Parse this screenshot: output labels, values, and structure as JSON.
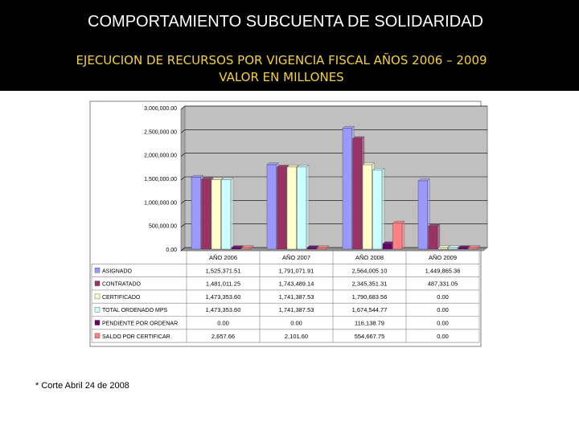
{
  "header": {
    "title": "COMPORTAMIENTO SUBCUENTA DE SOLIDARIDAD",
    "subtitle_line1": "EJECUCION DE RECURSOS POR VIGENCIA FISCAL AÑOS 2006 – 2009",
    "subtitle_line2": "VALOR EN MILLONES"
  },
  "footnote": "* Corte Abril 24 de 2008",
  "chart_data": {
    "type": "bar",
    "categories": [
      "AÑO 2006",
      "AÑO 2007",
      "AÑO 2008",
      "AÑO 2009"
    ],
    "y_ticks": [
      "0.00",
      "500,000.00",
      "1,000,000.00",
      "1,500,000.00",
      "2,000,000.00",
      "2,500,000.00",
      "3,000,000.00"
    ],
    "ylim": [
      0,
      3000000
    ],
    "grid": true,
    "series": [
      {
        "name": "ASIGNADO",
        "color": "#9999FF",
        "values": [
          1525371.51,
          1791071.91,
          2564005.1,
          1449865.36
        ],
        "labels": [
          "1,525,371.51",
          "1,791,071.91",
          "2,564,005.10",
          "1,449,865.36"
        ]
      },
      {
        "name": "CONTRATADO",
        "color": "#993366",
        "values": [
          1481011.25,
          1743489.14,
          2345351.31,
          487331.05
        ],
        "labels": [
          "1,481,011.25",
          "1,743,489.14",
          "2,345,351.31",
          "487,331.05"
        ]
      },
      {
        "name": "CERTIFICADO",
        "color": "#FFFFCC",
        "values": [
          1473353.6,
          1741387.53,
          1790683.56,
          0
        ],
        "labels": [
          "1,473,353.60",
          "1,741,387.53",
          "1,790,683.56",
          "0.00"
        ]
      },
      {
        "name": "TOTAL ORDENADO MPS",
        "color": "#CCFFFF",
        "values": [
          1473353.6,
          1741387.53,
          1674544.77,
          0
        ],
        "labels": [
          "1,473,353.60",
          "1,741,387.53",
          "1,674,544.77",
          "0.00"
        ]
      },
      {
        "name": "PENDIENTE POR ORDENAR",
        "color": "#660066",
        "values": [
          0,
          0,
          116138.79,
          0
        ],
        "labels": [
          "0.00",
          "0.00",
          "116,138.79",
          "0.00"
        ]
      },
      {
        "name": "SALDO POR CERTIFICAR",
        "color": "#FF8080",
        "values": [
          2657.66,
          2101.6,
          554667.75,
          0
        ],
        "labels": [
          "2,657.66",
          "2,101.60",
          "554,667.75",
          "0.00"
        ]
      }
    ]
  }
}
